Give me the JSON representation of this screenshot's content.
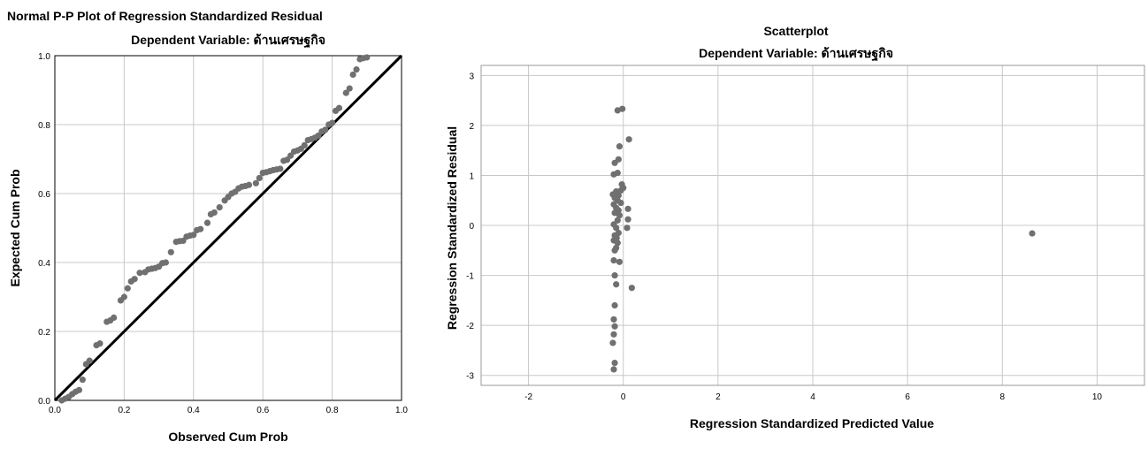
{
  "chart_data": [
    {
      "type": "scatter",
      "title": "Normal P-P Plot of Regression Standardized Residual",
      "subtitle": "Dependent Variable: ด้านเศรษฐกิจ",
      "xlabel": "Observed Cum Prob",
      "ylabel": "Expected Cum Prob",
      "xlim": [
        0,
        1
      ],
      "ylim": [
        0,
        1
      ],
      "xticks": [
        "0.0",
        "0.2",
        "0.4",
        "0.6",
        "0.8",
        "1.0"
      ],
      "yticks": [
        "0.0",
        "0.2",
        "0.4",
        "0.6",
        "0.8",
        "1.0"
      ],
      "grid": true,
      "reference_line": [
        [
          0,
          0
        ],
        [
          1,
          1
        ]
      ],
      "point_color": "#707070",
      "line_color": "#000000",
      "points": [
        [
          0.02,
          0.0
        ],
        [
          0.03,
          0.005
        ],
        [
          0.04,
          0.01
        ],
        [
          0.05,
          0.018
        ],
        [
          0.06,
          0.025
        ],
        [
          0.07,
          0.03
        ],
        [
          0.08,
          0.06
        ],
        [
          0.09,
          0.105
        ],
        [
          0.1,
          0.115
        ],
        [
          0.12,
          0.16
        ],
        [
          0.13,
          0.165
        ],
        [
          0.15,
          0.228
        ],
        [
          0.16,
          0.232
        ],
        [
          0.17,
          0.24
        ],
        [
          0.19,
          0.29
        ],
        [
          0.2,
          0.3
        ],
        [
          0.21,
          0.325
        ],
        [
          0.22,
          0.345
        ],
        [
          0.23,
          0.352
        ],
        [
          0.245,
          0.37
        ],
        [
          0.26,
          0.372
        ],
        [
          0.27,
          0.38
        ],
        [
          0.28,
          0.382
        ],
        [
          0.29,
          0.384
        ],
        [
          0.3,
          0.388
        ],
        [
          0.31,
          0.398
        ],
        [
          0.32,
          0.4
        ],
        [
          0.335,
          0.43
        ],
        [
          0.35,
          0.46
        ],
        [
          0.36,
          0.462
        ],
        [
          0.37,
          0.463
        ],
        [
          0.38,
          0.475
        ],
        [
          0.39,
          0.478
        ],
        [
          0.4,
          0.48
        ],
        [
          0.41,
          0.494
        ],
        [
          0.42,
          0.497
        ],
        [
          0.44,
          0.515
        ],
        [
          0.45,
          0.54
        ],
        [
          0.46,
          0.545
        ],
        [
          0.475,
          0.56
        ],
        [
          0.49,
          0.58
        ],
        [
          0.5,
          0.59
        ],
        [
          0.51,
          0.6
        ],
        [
          0.52,
          0.605
        ],
        [
          0.53,
          0.615
        ],
        [
          0.54,
          0.62
        ],
        [
          0.55,
          0.622
        ],
        [
          0.56,
          0.625
        ],
        [
          0.58,
          0.63
        ],
        [
          0.59,
          0.645
        ],
        [
          0.6,
          0.66
        ],
        [
          0.61,
          0.662
        ],
        [
          0.62,
          0.665
        ],
        [
          0.63,
          0.668
        ],
        [
          0.64,
          0.67
        ],
        [
          0.65,
          0.672
        ],
        [
          0.66,
          0.695
        ],
        [
          0.67,
          0.698
        ],
        [
          0.68,
          0.71
        ],
        [
          0.69,
          0.722
        ],
        [
          0.7,
          0.725
        ],
        [
          0.71,
          0.73
        ],
        [
          0.72,
          0.74
        ],
        [
          0.73,
          0.755
        ],
        [
          0.74,
          0.758
        ],
        [
          0.75,
          0.762
        ],
        [
          0.76,
          0.768
        ],
        [
          0.77,
          0.78
        ],
        [
          0.78,
          0.785
        ],
        [
          0.79,
          0.8
        ],
        [
          0.8,
          0.805
        ],
        [
          0.81,
          0.84
        ],
        [
          0.82,
          0.848
        ],
        [
          0.84,
          0.892
        ],
        [
          0.85,
          0.905
        ],
        [
          0.86,
          0.945
        ],
        [
          0.87,
          0.96
        ],
        [
          0.88,
          0.99
        ],
        [
          0.89,
          0.993
        ],
        [
          0.9,
          0.995
        ]
      ]
    },
    {
      "type": "scatter",
      "title": "Scatterplot",
      "subtitle": "Dependent Variable: ด้านเศรษฐกิจ",
      "xlabel": "Regression Standardized Predicted Value",
      "ylabel": "Regression Standardized Residual",
      "xlim": [
        -3,
        11
      ],
      "ylim": [
        -3.2,
        3.2
      ],
      "xticks": [
        -2,
        0,
        2,
        4,
        6,
        8,
        10
      ],
      "yticks": [
        -3,
        -2,
        -1,
        0,
        1,
        2,
        3
      ],
      "grid": true,
      "point_color": "#707070",
      "points": [
        [
          -0.12,
          2.3
        ],
        [
          -0.02,
          2.33
        ],
        [
          0.12,
          1.72
        ],
        [
          -0.08,
          1.58
        ],
        [
          -0.18,
          1.25
        ],
        [
          -0.1,
          1.32
        ],
        [
          -0.2,
          1.02
        ],
        [
          -0.12,
          1.05
        ],
        [
          -0.03,
          0.82
        ],
        [
          0.0,
          0.75
        ],
        [
          -0.05,
          0.7
        ],
        [
          -0.15,
          0.68
        ],
        [
          -0.22,
          0.62
        ],
        [
          -0.1,
          0.6
        ],
        [
          -0.18,
          0.55
        ],
        [
          -0.12,
          0.5
        ],
        [
          -0.05,
          0.45
        ],
        [
          -0.2,
          0.42
        ],
        [
          -0.15,
          0.35
        ],
        [
          -0.1,
          0.3
        ],
        [
          0.1,
          0.33
        ],
        [
          -0.18,
          0.25
        ],
        [
          -0.08,
          0.2
        ],
        [
          0.1,
          0.12
        ],
        [
          -0.12,
          0.1
        ],
        [
          -0.2,
          0.02
        ],
        [
          -0.15,
          -0.05
        ],
        [
          0.08,
          -0.05
        ],
        [
          -0.1,
          -0.15
        ],
        [
          -0.18,
          -0.2
        ],
        [
          -0.14,
          -0.25
        ],
        [
          -0.2,
          -0.3
        ],
        [
          -0.12,
          -0.35
        ],
        [
          -0.15,
          -0.45
        ],
        [
          -0.18,
          -0.5
        ],
        [
          -0.2,
          -0.7
        ],
        [
          -0.08,
          -0.73
        ],
        [
          -0.18,
          -1.0
        ],
        [
          -0.15,
          -1.18
        ],
        [
          0.18,
          -1.25
        ],
        [
          -0.18,
          -1.6
        ],
        [
          -0.2,
          -1.88
        ],
        [
          -0.18,
          -2.02
        ],
        [
          -0.2,
          -2.18
        ],
        [
          -0.22,
          -2.35
        ],
        [
          -0.18,
          -2.75
        ],
        [
          -0.2,
          -2.88
        ],
        [
          8.63,
          -0.16
        ]
      ]
    }
  ]
}
